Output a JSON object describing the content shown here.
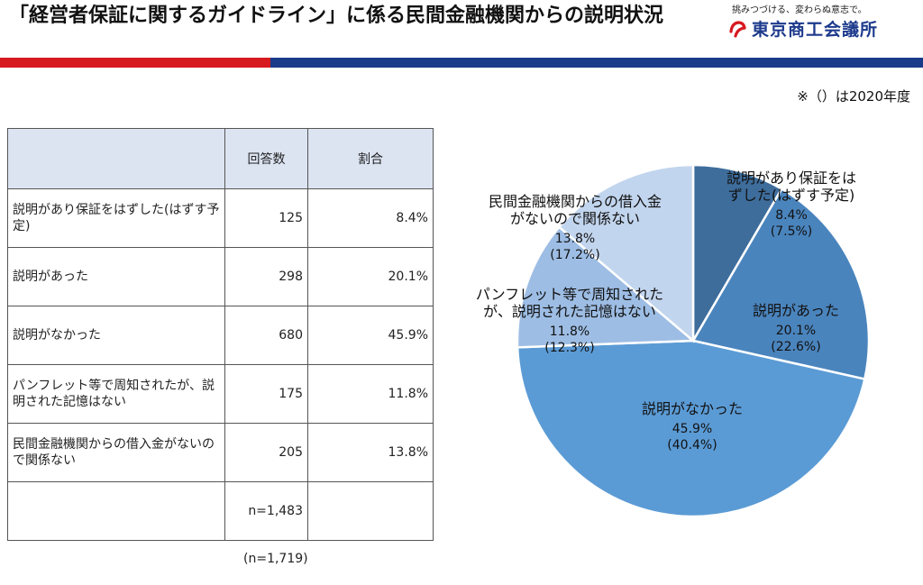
{
  "header": {
    "title": "「経営者保証に関するガイドライン」に係る民間金融機関からの説明状況",
    "logo_tagline": "挑みつづける、変わらぬ意志で。",
    "logo_name": "東京商工会議所",
    "brand_red": "#d71920",
    "brand_blue": "#1a3a8a"
  },
  "note": "※（）は2020年度",
  "table": {
    "columns": [
      "",
      "回答数",
      "割合"
    ],
    "rows": [
      {
        "label": "説明があり保証をはずした(はずす予定)",
        "count": "125",
        "ratio": "8.4%"
      },
      {
        "label": "説明があった",
        "count": "298",
        "ratio": "20.1%"
      },
      {
        "label": "説明がなかった",
        "count": "680",
        "ratio": "45.9%"
      },
      {
        "label": "パンフレット等で周知されたが、説明された記憶はない",
        "count": "175",
        "ratio": "11.8%"
      },
      {
        "label": "民間金融機関からの借入金がないので関係ない",
        "count": "205",
        "ratio": "13.8%"
      }
    ],
    "n_current": "n=1,483",
    "n_previous": "(n=1,719)"
  },
  "chart_data": {
    "type": "pie",
    "title": "",
    "slices": [
      {
        "label": "説明があり保証をはずした(はずす予定)",
        "label_lines": [
          "説明があり保証をは",
          "ずした(はずす予定)"
        ],
        "value": 8.4,
        "value_label": "8.4%",
        "prev_label": "(7.5%)",
        "prev_value": 7.5,
        "color": "#3e6d9c"
      },
      {
        "label": "説明があった",
        "label_lines": [
          "説明があった"
        ],
        "value": 20.1,
        "value_label": "20.1%",
        "prev_label": "(22.6%)",
        "prev_value": 22.6,
        "color": "#4a84bd"
      },
      {
        "label": "説明がなかった",
        "label_lines": [
          "説明がなかった"
        ],
        "value": 45.9,
        "value_label": "45.9%",
        "prev_label": "(40.4%)",
        "prev_value": 40.4,
        "color": "#5b9bd5"
      },
      {
        "label": "パンフレット等で周知されたが、説明された記憶はない",
        "label_lines": [
          "パンフレット等で周知された",
          "が、説明された記憶はない"
        ],
        "value": 11.8,
        "value_label": "11.8%",
        "prev_label": "(12.3%)",
        "prev_value": 12.3,
        "color": "#9dbde4"
      },
      {
        "label": "民間金融機関からの借入金がないので関係ない",
        "label_lines": [
          "民間金融機関からの借入金",
          "がないので関係ない"
        ],
        "value": 13.8,
        "value_label": "13.8%",
        "prev_label": "(17.2%)",
        "prev_value": 17.2,
        "color": "#c2d5ee"
      }
    ]
  }
}
